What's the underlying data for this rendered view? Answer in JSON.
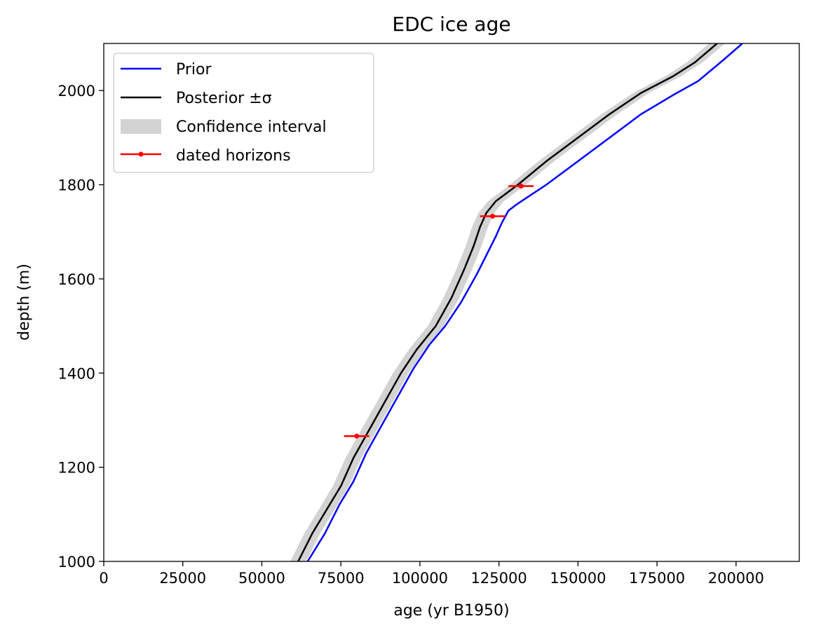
{
  "chart_data": {
    "type": "line",
    "title": "EDC ice age",
    "xlabel": "age (yr B1950)",
    "ylabel": "depth (m)",
    "xlim": [
      0,
      220000
    ],
    "ylim": [
      1000,
      2100
    ],
    "x_ticks": [
      0,
      25000,
      50000,
      75000,
      100000,
      125000,
      150000,
      175000,
      200000
    ],
    "y_ticks": [
      1000,
      1200,
      1400,
      1600,
      1800,
      2000
    ],
    "legend_position": "upper-left",
    "series": [
      {
        "name": "Prior",
        "color": "#0000ff",
        "points": [
          [
            64500,
            1000
          ],
          [
            70000,
            1060
          ],
          [
            74500,
            1120
          ],
          [
            79000,
            1170
          ],
          [
            83000,
            1230
          ],
          [
            88000,
            1290
          ],
          [
            93000,
            1350
          ],
          [
            98000,
            1410
          ],
          [
            103000,
            1460
          ],
          [
            108000,
            1500
          ],
          [
            113000,
            1550
          ],
          [
            118000,
            1610
          ],
          [
            121000,
            1650
          ],
          [
            124000,
            1690
          ],
          [
            126000,
            1720
          ],
          [
            128000,
            1745
          ],
          [
            131000,
            1760
          ],
          [
            140000,
            1800
          ],
          [
            150000,
            1850
          ],
          [
            160000,
            1900
          ],
          [
            170000,
            1950
          ],
          [
            180000,
            1990
          ],
          [
            188000,
            2020
          ],
          [
            196000,
            2065
          ],
          [
            202000,
            2100
          ]
        ]
      },
      {
        "name": "Posterior ±σ",
        "color": "#000000",
        "points": [
          [
            61500,
            1000
          ],
          [
            66000,
            1060
          ],
          [
            70500,
            1110
          ],
          [
            75000,
            1160
          ],
          [
            79000,
            1220
          ],
          [
            84000,
            1280
          ],
          [
            89000,
            1340
          ],
          [
            94000,
            1400
          ],
          [
            99000,
            1450
          ],
          [
            105000,
            1500
          ],
          [
            110000,
            1560
          ],
          [
            114000,
            1620
          ],
          [
            117000,
            1670
          ],
          [
            119000,
            1710
          ],
          [
            121000,
            1740
          ],
          [
            124000,
            1765
          ],
          [
            131000,
            1800
          ],
          [
            140000,
            1850
          ],
          [
            150000,
            1900
          ],
          [
            160000,
            1950
          ],
          [
            170000,
            1995
          ],
          [
            180000,
            2030
          ],
          [
            187000,
            2060
          ],
          [
            194000,
            2100
          ]
        ]
      }
    ],
    "confidence_interval": {
      "name": "Confidence interval",
      "color": "#d3d3d3",
      "half_width": 2500
    },
    "dated_horizons": {
      "name": "dated horizons",
      "color": "#ff0000",
      "points": [
        {
          "age": 80000,
          "depth": 1266,
          "err": 4000
        },
        {
          "age": 123000,
          "depth": 1733,
          "err": 4000
        },
        {
          "age": 132000,
          "depth": 1797,
          "err": 4000
        }
      ]
    }
  }
}
